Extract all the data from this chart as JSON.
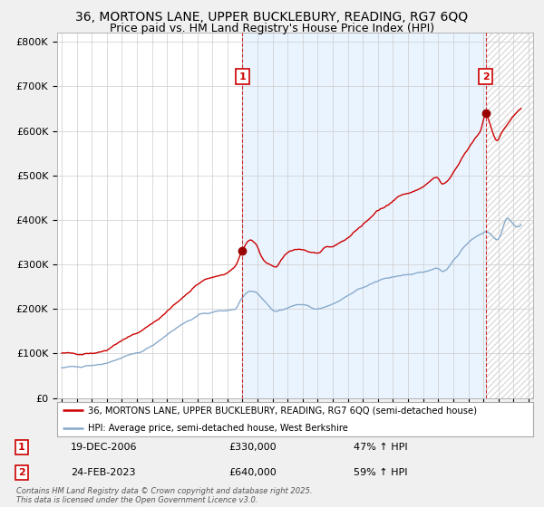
{
  "title1": "36, MORTONS LANE, UPPER BUCKLEBURY, READING, RG7 6QQ",
  "title2": "Price paid vs. HM Land Registry's House Price Index (HPI)",
  "ylabel_ticks": [
    "£0",
    "£100K",
    "£200K",
    "£300K",
    "£400K",
    "£500K",
    "£600K",
    "£700K",
    "£800K"
  ],
  "ytick_values": [
    0,
    100000,
    200000,
    300000,
    400000,
    500000,
    600000,
    700000,
    800000
  ],
  "ylim": [
    0,
    820000
  ],
  "xlim_start": 1994.7,
  "xlim_end": 2026.3,
  "vline1_x": 2007.0,
  "vline2_x": 2023.15,
  "sale1_x": 2006.97,
  "sale1_y": 330000,
  "sale2_x": 2023.15,
  "sale2_y": 640000,
  "legend_line1": "36, MORTONS LANE, UPPER BUCKLEBURY, READING, RG7 6QQ (semi-detached house)",
  "legend_line2": "HPI: Average price, semi-detached house, West Berkshire",
  "annotation1_num": "1",
  "annotation1_date": "19-DEC-2006",
  "annotation1_price": "£330,000",
  "annotation1_hpi": "47% ↑ HPI",
  "annotation2_num": "2",
  "annotation2_date": "24-FEB-2023",
  "annotation2_price": "£640,000",
  "annotation2_hpi": "59% ↑ HPI",
  "footer": "Contains HM Land Registry data © Crown copyright and database right 2025.\nThis data is licensed under the Open Government Licence v3.0.",
  "line_color_red": "#cc0000",
  "line_color_blue": "#88aacc",
  "vline_color": "#cc0000",
  "shade_color": "#ddeeff",
  "background_color": "#f0f0f0",
  "plot_bg_color": "#ffffff",
  "grid_color": "#cccccc",
  "title_fontsize": 10,
  "subtitle_fontsize": 9,
  "tick_fontsize": 8
}
